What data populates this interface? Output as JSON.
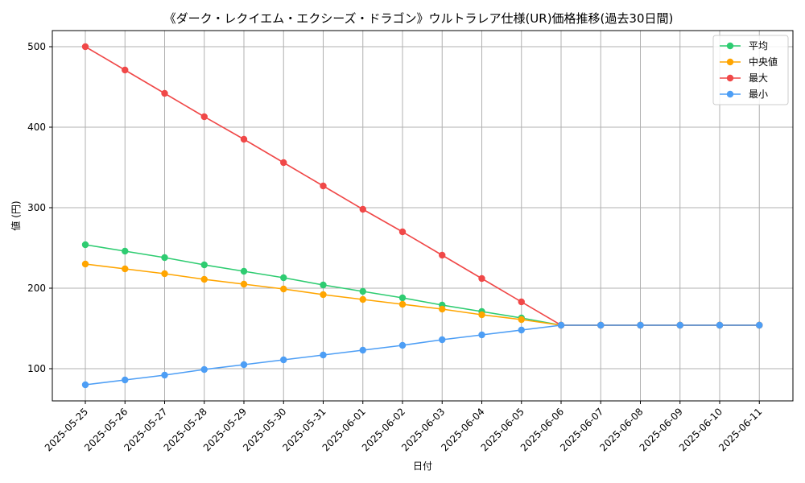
{
  "chart_data": {
    "type": "line",
    "title": "《ダーク・レクイエム・エクシーズ・ドラゴン》ウルトラレア仕様(UR)価格推移(過去30日間)",
    "xlabel": "日付",
    "ylabel": "値 (円)",
    "ylim": [
      60,
      520
    ],
    "yticks": [
      100,
      200,
      300,
      400,
      500
    ],
    "grid": true,
    "legend_position": "top-right",
    "categories": [
      "2025-05-25",
      "2025-05-26",
      "2025-05-27",
      "2025-05-28",
      "2025-05-29",
      "2025-05-30",
      "2025-05-31",
      "2025-06-01",
      "2025-06-02",
      "2025-06-03",
      "2025-06-04",
      "2025-06-05",
      "2025-06-06",
      "2025-06-07",
      "2025-06-08",
      "2025-06-09",
      "2025-06-10",
      "2025-06-11"
    ],
    "series": [
      {
        "name": "平均",
        "color": "#2ecc71",
        "values": [
          254,
          246,
          238,
          229,
          221,
          213,
          204,
          196,
          188,
          179,
          171,
          163,
          154,
          154,
          154,
          154,
          154,
          154
        ]
      },
      {
        "name": "中央値",
        "color": "#ffa500",
        "values": [
          230,
          224,
          218,
          211,
          205,
          199,
          192,
          186,
          180,
          174,
          167,
          161,
          154,
          154,
          154,
          154,
          154,
          154
        ]
      },
      {
        "name": "最大",
        "color": "#f04848",
        "values": [
          500,
          471,
          442,
          413,
          385,
          356,
          327,
          298,
          270,
          241,
          212,
          183,
          154,
          154,
          154,
          154,
          154,
          154
        ]
      },
      {
        "name": "最小",
        "color": "#4d9ef5",
        "values": [
          80,
          86,
          92,
          99,
          105,
          111,
          117,
          123,
          129,
          136,
          142,
          148,
          154,
          154,
          154,
          154,
          154,
          154
        ]
      }
    ]
  }
}
